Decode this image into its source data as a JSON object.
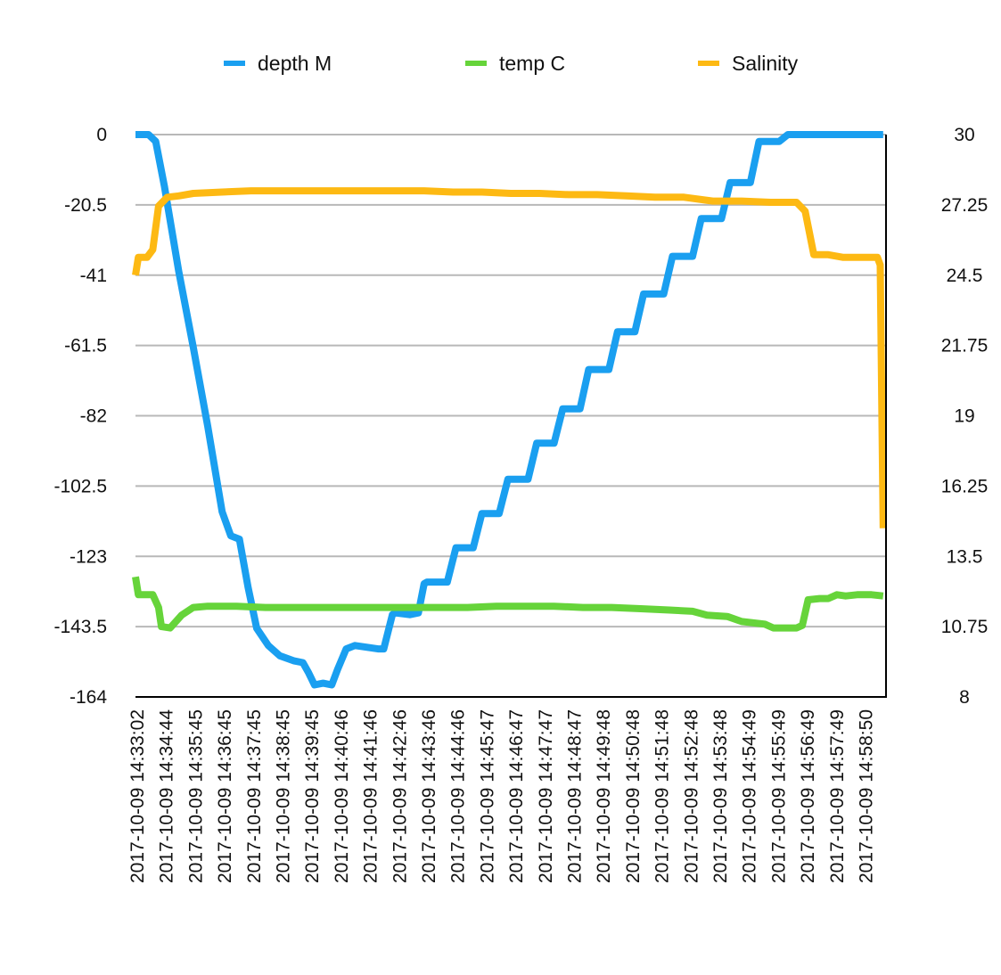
{
  "chart_data": {
    "type": "line",
    "legend_position": "top",
    "grid": true,
    "y_left": {
      "min": -164,
      "max": 0,
      "ticks": [
        "0",
        "-20.5",
        "-41",
        "-61.5",
        "-82",
        "-102.5",
        "-123",
        "-143.5",
        "-164"
      ]
    },
    "y_right": {
      "min": 8,
      "max": 30,
      "ticks": [
        "30",
        "27.25",
        "24.5",
        "21.75",
        "19",
        "16.25",
        "13.5",
        "10.75",
        "8"
      ]
    },
    "x_range": [
      0,
      26
    ],
    "x_ticks": [
      "2017-10-09 14:33:02",
      "2017-10-09 14:34:44",
      "2017-10-09 14:35:45",
      "2017-10-09 14:36:45",
      "2017-10-09 14:37:45",
      "2017-10-09 14:38:45",
      "2017-10-09 14:39:45",
      "2017-10-09 14:40:46",
      "2017-10-09 14:41:46",
      "2017-10-09 14:42:46",
      "2017-10-09 14:43:46",
      "2017-10-09 14:44:46",
      "2017-10-09 14:45:47",
      "2017-10-09 14:46:47",
      "2017-10-09 14:47:47",
      "2017-10-09 14:48:47",
      "2017-10-09 14:49:48",
      "2017-10-09 14:50:48",
      "2017-10-09 14:51:48",
      "2017-10-09 14:52:48",
      "2017-10-09 14:53:48",
      "2017-10-09 14:54:49",
      "2017-10-09 14:55:49",
      "2017-10-09 14:56:49",
      "2017-10-09 14:57:49",
      "2017-10-09 14:58:50"
    ],
    "series": [
      {
        "name": "depth M",
        "axis": "left",
        "color": "#1a9ff0",
        "points": [
          [
            0,
            0
          ],
          [
            0.45,
            0
          ],
          [
            0.7,
            -2
          ],
          [
            1.0,
            -15
          ],
          [
            1.5,
            -40
          ],
          [
            2.0,
            -62
          ],
          [
            2.5,
            -85
          ],
          [
            3.0,
            -110
          ],
          [
            3.3,
            -117
          ],
          [
            3.6,
            -118
          ],
          [
            3.9,
            -132
          ],
          [
            4.2,
            -144
          ],
          [
            4.6,
            -149
          ],
          [
            5.0,
            -152
          ],
          [
            5.5,
            -153.5
          ],
          [
            5.8,
            -154
          ],
          [
            6.0,
            -157
          ],
          [
            6.2,
            -160.5
          ],
          [
            6.5,
            -160
          ],
          [
            6.8,
            -160.5
          ],
          [
            7.0,
            -156
          ],
          [
            7.3,
            -150
          ],
          [
            7.6,
            -149
          ],
          [
            8.0,
            -149.5
          ],
          [
            8.4,
            -150
          ],
          [
            8.6,
            -150
          ],
          [
            8.9,
            -140
          ],
          [
            9.0,
            -139.5
          ],
          [
            9.5,
            -140
          ],
          [
            9.8,
            -139.5
          ],
          [
            10.0,
            -131
          ],
          [
            10.1,
            -130.5
          ],
          [
            10.8,
            -130.5
          ],
          [
            11.1,
            -120.5
          ],
          [
            11.7,
            -120.5
          ],
          [
            12.0,
            -110.5
          ],
          [
            12.6,
            -110.5
          ],
          [
            12.9,
            -100.5
          ],
          [
            13.6,
            -100.5
          ],
          [
            13.9,
            -90
          ],
          [
            14.5,
            -90
          ],
          [
            14.8,
            -80
          ],
          [
            15.4,
            -80
          ],
          [
            15.7,
            -68.5
          ],
          [
            16.4,
            -68.5
          ],
          [
            16.7,
            -57.5
          ],
          [
            17.3,
            -57.5
          ],
          [
            17.6,
            -46.5
          ],
          [
            18.3,
            -46.5
          ],
          [
            18.6,
            -35.5
          ],
          [
            19.3,
            -35.5
          ],
          [
            19.6,
            -24.5
          ],
          [
            20.3,
            -24.5
          ],
          [
            20.6,
            -14
          ],
          [
            21.3,
            -14
          ],
          [
            21.6,
            -2
          ],
          [
            22.3,
            -2
          ],
          [
            22.6,
            0
          ],
          [
            25.9,
            0
          ]
        ]
      },
      {
        "name": "temp C",
        "axis": "right",
        "color": "#66d43a",
        "points": [
          [
            0,
            12.7
          ],
          [
            0.1,
            12.0
          ],
          [
            0.6,
            12.0
          ],
          [
            0.8,
            11.5
          ],
          [
            0.9,
            10.75
          ],
          [
            1.2,
            10.7
          ],
          [
            1.6,
            11.2
          ],
          [
            2.0,
            11.5
          ],
          [
            2.5,
            11.55
          ],
          [
            3.5,
            11.55
          ],
          [
            4.5,
            11.5
          ],
          [
            5.5,
            11.5
          ],
          [
            6.5,
            11.5
          ],
          [
            7.5,
            11.5
          ],
          [
            8.5,
            11.5
          ],
          [
            9.5,
            11.5
          ],
          [
            10.5,
            11.5
          ],
          [
            11.5,
            11.5
          ],
          [
            12.5,
            11.55
          ],
          [
            13.5,
            11.55
          ],
          [
            14.5,
            11.55
          ],
          [
            15.5,
            11.5
          ],
          [
            16.5,
            11.5
          ],
          [
            17.5,
            11.45
          ],
          [
            18.5,
            11.4
          ],
          [
            19.3,
            11.35
          ],
          [
            19.8,
            11.2
          ],
          [
            20.5,
            11.15
          ],
          [
            21.0,
            10.95
          ],
          [
            21.8,
            10.85
          ],
          [
            22.1,
            10.7
          ],
          [
            22.9,
            10.7
          ],
          [
            23.1,
            10.8
          ],
          [
            23.3,
            11.8
          ],
          [
            23.7,
            11.85
          ],
          [
            24.0,
            11.85
          ],
          [
            24.3,
            12.0
          ],
          [
            24.6,
            11.95
          ],
          [
            25.0,
            12.0
          ],
          [
            25.5,
            12.0
          ],
          [
            25.9,
            11.95
          ]
        ]
      },
      {
        "name": "Salinity",
        "axis": "right",
        "color": "#fdb913",
        "points": [
          [
            0,
            24.5
          ],
          [
            0.1,
            25.2
          ],
          [
            0.4,
            25.2
          ],
          [
            0.6,
            25.5
          ],
          [
            0.8,
            27.2
          ],
          [
            1.1,
            27.55
          ],
          [
            1.5,
            27.6
          ],
          [
            2.0,
            27.7
          ],
          [
            3.0,
            27.75
          ],
          [
            4.0,
            27.8
          ],
          [
            5.0,
            27.8
          ],
          [
            6.0,
            27.8
          ],
          [
            7.0,
            27.8
          ],
          [
            8.0,
            27.8
          ],
          [
            9.0,
            27.8
          ],
          [
            10.0,
            27.8
          ],
          [
            11.0,
            27.75
          ],
          [
            12.0,
            27.75
          ],
          [
            13.0,
            27.7
          ],
          [
            14.0,
            27.7
          ],
          [
            15.0,
            27.65
          ],
          [
            16.0,
            27.65
          ],
          [
            17.0,
            27.6
          ],
          [
            18.0,
            27.55
          ],
          [
            19.0,
            27.55
          ],
          [
            20.0,
            27.4
          ],
          [
            21.0,
            27.4
          ],
          [
            22.0,
            27.35
          ],
          [
            22.9,
            27.35
          ],
          [
            23.2,
            27.0
          ],
          [
            23.5,
            25.3
          ],
          [
            24.0,
            25.3
          ],
          [
            24.5,
            25.2
          ],
          [
            25.0,
            25.2
          ],
          [
            25.7,
            25.2
          ],
          [
            25.8,
            24.9
          ],
          [
            25.9,
            14.6
          ]
        ]
      }
    ]
  }
}
